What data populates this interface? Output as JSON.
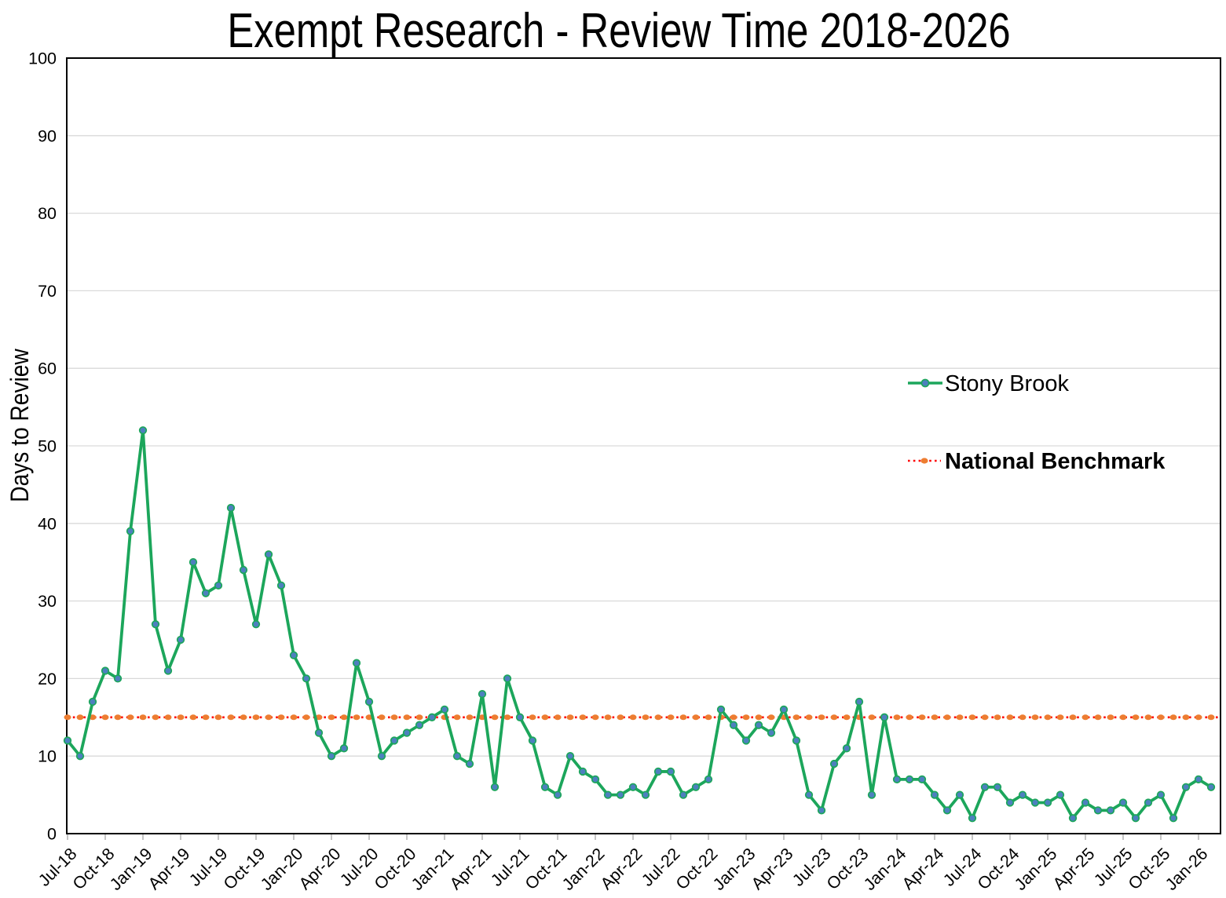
{
  "chart_data": {
    "type": "line",
    "title": "Exempt Research - Review Time 2018-2026",
    "ylabel": "Days to Review",
    "xlabel": "",
    "ylim": [
      0,
      100
    ],
    "y_tick_step": 10,
    "x_tick_every": 3,
    "grid": "horizontal",
    "legend_position": "right-middle",
    "colors": {
      "series_line": "#1CA65B",
      "series_marker": "#4D80BE",
      "benchmark_line": "#FF0000",
      "benchmark_marker": "#ED7D31",
      "gridline": "#D9D9D9",
      "axis": "#000000"
    },
    "months": [
      "Jul-18",
      "Aug-18",
      "Sep-18",
      "Oct-18",
      "Nov-18",
      "Dec-18",
      "Jan-19",
      "Feb-19",
      "Mar-19",
      "Apr-19",
      "May-19",
      "Jun-19",
      "Jul-19",
      "Aug-19",
      "Sep-19",
      "Oct-19",
      "Nov-19",
      "Dec-19",
      "Jan-20",
      "Feb-20",
      "Mar-20",
      "Apr-20",
      "May-20",
      "Jun-20",
      "Jul-20",
      "Aug-20",
      "Sep-20",
      "Oct-20",
      "Nov-20",
      "Dec-20",
      "Jan-21",
      "Feb-21",
      "Mar-21",
      "Apr-21",
      "May-21",
      "Jun-21",
      "Jul-21",
      "Aug-21",
      "Sep-21",
      "Oct-21",
      "Nov-21",
      "Dec-21",
      "Jan-22",
      "Feb-22",
      "Mar-22",
      "Apr-22",
      "May-22",
      "Jun-22",
      "Jul-22",
      "Aug-22",
      "Sep-22",
      "Oct-22",
      "Nov-22",
      "Dec-22",
      "Jan-23",
      "Feb-23",
      "Mar-23",
      "Apr-23",
      "May-23",
      "Jun-23",
      "Jul-23",
      "Aug-23",
      "Sep-23",
      "Oct-23",
      "Nov-23",
      "Dec-23",
      "Jan-24",
      "Feb-24",
      "Mar-24",
      "Apr-24",
      "May-24",
      "Jun-24",
      "Jul-24",
      "Aug-24",
      "Sep-24",
      "Oct-24",
      "Nov-24",
      "Dec-24",
      "Jan-25",
      "Feb-25",
      "Mar-25",
      "Apr-25",
      "May-25",
      "Jun-25",
      "Jul-25",
      "Aug-25",
      "Sep-25",
      "Oct-25",
      "Nov-25",
      "Dec-25",
      "Jan-26",
      "Feb-26"
    ],
    "series": [
      {
        "name": "Stony Brook",
        "style": "solid-line-with-circle-markers",
        "values": [
          12,
          10,
          17,
          21,
          20,
          39,
          52,
          27,
          21,
          25,
          35,
          31,
          32,
          42,
          34,
          27,
          36,
          32,
          23,
          20,
          13,
          10,
          11,
          22,
          17,
          10,
          12,
          13,
          14,
          15,
          16,
          10,
          9,
          18,
          6,
          20,
          15,
          12,
          6,
          5,
          10,
          8,
          7,
          5,
          5,
          6,
          5,
          8,
          8,
          5,
          6,
          7,
          16,
          14,
          12,
          14,
          13,
          16,
          12,
          5,
          3,
          9,
          11,
          17,
          5,
          15,
          7,
          7,
          7,
          5,
          3,
          5,
          2,
          6,
          6,
          4,
          5,
          4,
          4,
          5,
          2,
          4,
          3,
          3,
          4,
          2,
          4,
          5,
          2,
          6,
          7,
          6
        ]
      },
      {
        "name": "National Benchmark",
        "style": "dotted-line-with-ellipse-markers",
        "constant_value": 15
      }
    ]
  }
}
